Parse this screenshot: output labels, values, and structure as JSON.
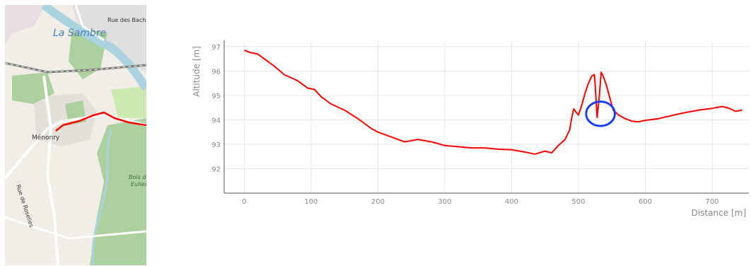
{
  "map": {
    "labels": {
      "river": "La Sambre",
      "street_top": "Rue des Bach",
      "town": "Ménonry",
      "wood_line1": "Bois de",
      "wood_line2": "Eulies",
      "street_left": "Rue de Roselies"
    },
    "colors": {
      "background": "#f1eee8",
      "river": "#aad3df",
      "forest": "#add19e",
      "urban": "#e0dfdf",
      "route": "#ff0000"
    }
  },
  "chart_data": {
    "type": "line",
    "title": "",
    "xlabel": "Distance [m]",
    "ylabel": "Altitude [m]",
    "xlim": [
      -30,
      755
    ],
    "ylim": [
      91,
      97.2
    ],
    "x_ticks": [
      0,
      100,
      200,
      300,
      400,
      500,
      600,
      700
    ],
    "y_ticks": [
      92,
      93,
      94,
      95,
      96,
      97
    ],
    "grid": true,
    "series": [
      {
        "color": "#ff0000",
        "x": [
          0,
          10,
          20,
          30,
          45,
          60,
          80,
          95,
          105,
          115,
          130,
          150,
          170,
          190,
          200,
          220,
          240,
          260,
          280,
          300,
          320,
          340,
          360,
          380,
          400,
          420,
          435,
          450,
          460,
          470,
          480,
          487,
          490,
          493,
          497,
          500,
          505,
          510,
          515,
          520,
          524,
          528,
          531,
          534,
          537,
          542,
          547,
          552,
          560,
          570,
          580,
          590,
          600,
          620,
          640,
          660,
          680,
          700,
          715,
          725,
          735,
          745
        ],
        "y": [
          96.85,
          96.75,
          96.7,
          96.5,
          96.2,
          95.85,
          95.6,
          95.3,
          95.25,
          94.95,
          94.65,
          94.4,
          94.05,
          93.65,
          93.5,
          93.3,
          93.1,
          93.2,
          93.1,
          92.95,
          92.9,
          92.85,
          92.85,
          92.8,
          92.78,
          92.68,
          92.6,
          92.72,
          92.65,
          92.95,
          93.2,
          93.6,
          94.1,
          94.45,
          94.3,
          94.2,
          94.6,
          95.1,
          95.5,
          95.8,
          95.85,
          94.1,
          94.9,
          95.95,
          95.8,
          95.4,
          94.9,
          94.4,
          94.2,
          94.05,
          93.95,
          93.92,
          93.98,
          94.05,
          94.18,
          94.3,
          94.4,
          94.47,
          94.55,
          94.48,
          94.35,
          94.4
        ]
      }
    ],
    "annotations": [
      {
        "shape": "ellipse",
        "center": [
          533,
          94.25
        ],
        "radius_x_data": 21.5,
        "radius_y_data": 0.5,
        "color": "#1a3ef0"
      }
    ]
  }
}
